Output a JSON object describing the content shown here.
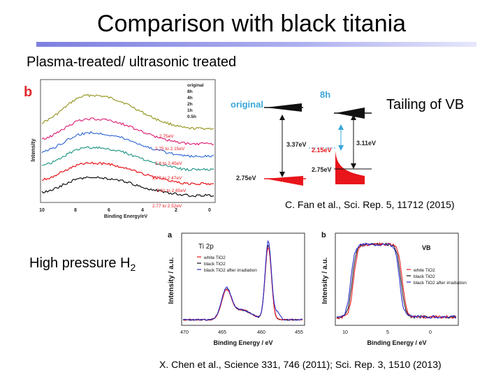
{
  "slide": {
    "title": "Comparison with black titania",
    "subtitle": "Plasma-treated/ ultrasonic treated",
    "tailing_label": "Tailing of VB",
    "citation_1": "C. Fan et al., Sci. Rep. 5, 11712 (2015)",
    "high_pressure_label": "High pressure H",
    "high_pressure_sub": "2",
    "citation_2": "X. Chen et al., Science 331, 746 (2011); Sci. Rep. 3, 1510 (2013)"
  },
  "colors": {
    "title_bar": "#7d7fe0",
    "panel_b_label": "#e0282c",
    "red": "#e8151b",
    "blue": "#2a2ccf",
    "black": "#111111",
    "annotation_red": "#e8151b",
    "gap_blue": "#3aa7d8"
  },
  "figure_b": {
    "panel_label": "b",
    "ylabel": "Intensity",
    "xlabel": "Binding Energy/eV",
    "legend_items": [
      "original",
      "8h",
      "4h",
      "2h",
      "1h",
      "0.5h"
    ],
    "annotations": [
      "2.75eV",
      "2.75 to 2.15eV",
      "2.8 to 2.45eV",
      "2.77 to 2.47eV",
      "2.81 to 2.65eV",
      "2.77 to 2.52eV"
    ],
    "x_ticks": [
      "10",
      "8",
      "6",
      "4",
      "2",
      "0"
    ],
    "series_colors": [
      "#9a9a2a",
      "#e0287a",
      "#3a6fd8",
      "#2a9a8a",
      "#e8151b",
      "#111111"
    ]
  },
  "band_diagram": {
    "original_label": "original",
    "treated_label": "8h",
    "gap_original": "3.37eV",
    "gap_treated": "3.11eV",
    "tail_level": "2.15eV",
    "vb_level_original": "2.75eV",
    "vb_level_treated": "2.75eV"
  },
  "xps_ti2p": {
    "panel_label": "a",
    "inset_label": "Ti 2p",
    "ylabel": "Intensity / a.u.",
    "xlabel": "Binding Energy / eV",
    "x_ticks": [
      "470",
      "465",
      "460",
      "455"
    ],
    "legend": [
      "white TiO2",
      "black TiO2",
      "black TiO2 after irradiation"
    ]
  },
  "xps_vb": {
    "panel_label": "b",
    "inset_label": "VB",
    "ylabel": "Intensity / a.u.",
    "xlabel": "Binding Energy / eV",
    "x_ticks": [
      "10",
      "5",
      "0"
    ],
    "legend": [
      "white TiO2",
      "black TiO2",
      "black TiO2 after irradiation"
    ]
  }
}
